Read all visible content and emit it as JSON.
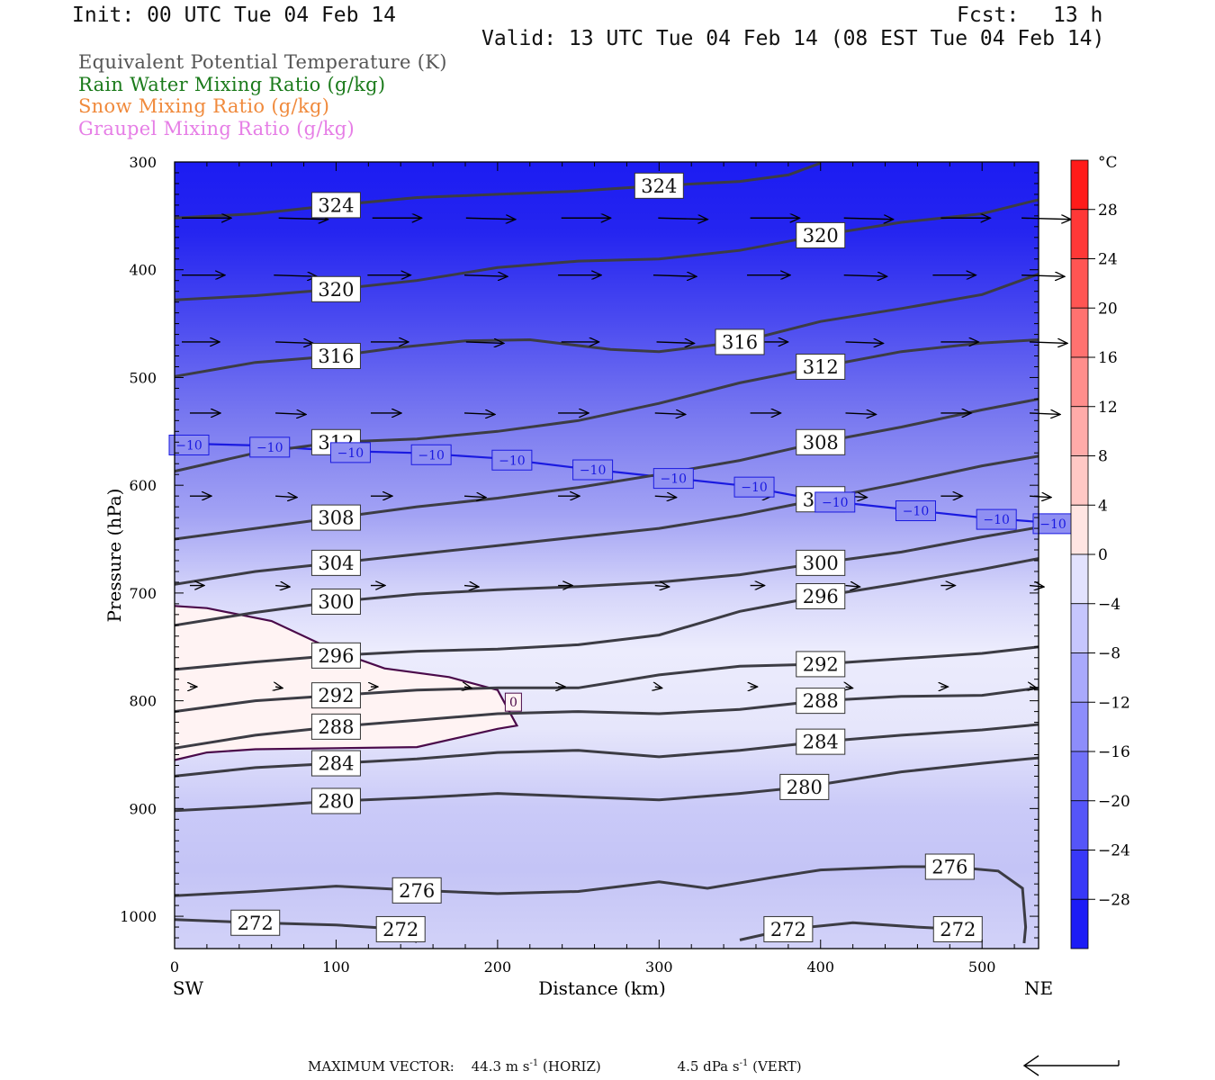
{
  "header": {
    "init": "Init: 00 UTC Tue 04 Feb 14",
    "fcst_label": "Fcst:",
    "fcst_value": "13 h",
    "valid": "Valid: 13 UTC Tue 04 Feb 14 (08 EST Tue 04 Feb 14)"
  },
  "legend": [
    {
      "text": "Equivalent Potential Temperature (K)",
      "color": "#555555"
    },
    {
      "text": "Rain Water Mixing Ratio (g/kg)",
      "color": "#1a7a1a"
    },
    {
      "text": "Snow Mixing Ratio (g/kg)",
      "color": "#f08a3c"
    },
    {
      "text": "Graupel Mixing Ratio (g/kg)",
      "color": "#e67ee6"
    }
  ],
  "chart_data": {
    "type": "cross-section",
    "xlabel": "Distance (km)",
    "ylabel": "Pressure (hPa)",
    "xlim": [
      0,
      535
    ],
    "ylim": [
      1030,
      300
    ],
    "x_ticks": [
      0,
      100,
      200,
      300,
      400,
      500
    ],
    "y_ticks": [
      300,
      400,
      500,
      600,
      700,
      800,
      900,
      1000
    ],
    "x_end_labels": {
      "left": "SW",
      "right": "NE"
    },
    "colorbar": {
      "unit": "°C",
      "ticks": [
        28,
        24,
        20,
        16,
        12,
        8,
        4,
        0,
        -4,
        -8,
        -12,
        -16,
        -20,
        -24,
        -28
      ],
      "tick_labels": [
        "28",
        "24",
        "20",
        "16",
        "12",
        "8",
        "4",
        "0",
        "−4",
        "−8",
        "−12",
        "−16",
        "−20",
        "−24",
        "−28"
      ],
      "range": [
        -32,
        32
      ]
    },
    "theta_e_contours": [
      {
        "value": 324,
        "points": [
          [
            0,
            352
          ],
          [
            50,
            348
          ],
          [
            100,
            340
          ],
          [
            150,
            333
          ],
          [
            200,
            330
          ],
          [
            250,
            327
          ],
          [
            300,
            322
          ],
          [
            350,
            318
          ],
          [
            380,
            312
          ],
          [
            400,
            301
          ]
        ]
      },
      {
        "value": 320,
        "points": [
          [
            0,
            428
          ],
          [
            50,
            424
          ],
          [
            100,
            418
          ],
          [
            150,
            410
          ],
          [
            200,
            398
          ],
          [
            250,
            392
          ],
          [
            300,
            390
          ],
          [
            350,
            382
          ],
          [
            400,
            368
          ],
          [
            450,
            356
          ],
          [
            500,
            348
          ],
          [
            535,
            335
          ]
        ]
      },
      {
        "value": 316,
        "points": [
          [
            0,
            499
          ],
          [
            50,
            486
          ],
          [
            100,
            480
          ],
          [
            140,
            472
          ],
          [
            180,
            466
          ],
          [
            220,
            465
          ],
          [
            270,
            474
          ],
          [
            300,
            476
          ],
          [
            350,
            467
          ],
          [
            400,
            448
          ],
          [
            450,
            436
          ],
          [
            500,
            423
          ],
          [
            535,
            404
          ]
        ]
      },
      {
        "value": 312,
        "points": [
          [
            0,
            587
          ],
          [
            50,
            570
          ],
          [
            100,
            560
          ],
          [
            150,
            557
          ],
          [
            200,
            550
          ],
          [
            250,
            540
          ],
          [
            300,
            524
          ],
          [
            350,
            505
          ],
          [
            400,
            490
          ],
          [
            450,
            476
          ],
          [
            500,
            468
          ],
          [
            535,
            465
          ]
        ]
      },
      {
        "value": 308,
        "points": [
          [
            0,
            650
          ],
          [
            50,
            640
          ],
          [
            100,
            630
          ],
          [
            150,
            620
          ],
          [
            200,
            612
          ],
          [
            250,
            602
          ],
          [
            300,
            590
          ],
          [
            350,
            577
          ],
          [
            400,
            560
          ],
          [
            450,
            546
          ],
          [
            500,
            530
          ],
          [
            535,
            520
          ]
        ]
      },
      {
        "value": 304,
        "points": [
          [
            0,
            692
          ],
          [
            50,
            680
          ],
          [
            100,
            672
          ],
          [
            150,
            664
          ],
          [
            200,
            656
          ],
          [
            250,
            648
          ],
          [
            300,
            640
          ],
          [
            350,
            628
          ],
          [
            400,
            613
          ],
          [
            450,
            598
          ],
          [
            500,
            582
          ],
          [
            535,
            573
          ]
        ]
      },
      {
        "value": 300,
        "points": [
          [
            0,
            730
          ],
          [
            50,
            718
          ],
          [
            100,
            708
          ],
          [
            150,
            701
          ],
          [
            200,
            697
          ],
          [
            250,
            694
          ],
          [
            300,
            690
          ],
          [
            350,
            683
          ],
          [
            400,
            672
          ],
          [
            450,
            662
          ],
          [
            500,
            648
          ],
          [
            535,
            639
          ]
        ]
      },
      {
        "value": 296,
        "points": [
          [
            0,
            771
          ],
          [
            50,
            764
          ],
          [
            100,
            758
          ],
          [
            150,
            754
          ],
          [
            200,
            752
          ],
          [
            250,
            748
          ],
          [
            300,
            739
          ],
          [
            350,
            717
          ],
          [
            400,
            703
          ],
          [
            450,
            691
          ],
          [
            500,
            678
          ],
          [
            535,
            668
          ]
        ]
      },
      {
        "value": 292,
        "points": [
          [
            0,
            810
          ],
          [
            50,
            800
          ],
          [
            100,
            795
          ],
          [
            150,
            790
          ],
          [
            200,
            788
          ],
          [
            250,
            788
          ],
          [
            300,
            776
          ],
          [
            350,
            768
          ],
          [
            400,
            766
          ],
          [
            450,
            761
          ],
          [
            500,
            756
          ],
          [
            535,
            750
          ]
        ]
      },
      {
        "value": 288,
        "points": [
          [
            0,
            844
          ],
          [
            50,
            832
          ],
          [
            100,
            824
          ],
          [
            150,
            818
          ],
          [
            200,
            812
          ],
          [
            250,
            810
          ],
          [
            300,
            812
          ],
          [
            350,
            808
          ],
          [
            400,
            800
          ],
          [
            450,
            796
          ],
          [
            500,
            795
          ],
          [
            535,
            788
          ]
        ]
      },
      {
        "value": 284,
        "points": [
          [
            0,
            870
          ],
          [
            50,
            862
          ],
          [
            100,
            858
          ],
          [
            150,
            854
          ],
          [
            200,
            848
          ],
          [
            250,
            846
          ],
          [
            300,
            852
          ],
          [
            350,
            846
          ],
          [
            400,
            838
          ],
          [
            450,
            832
          ],
          [
            500,
            827
          ],
          [
            535,
            822
          ]
        ]
      },
      {
        "value": 280,
        "points": [
          [
            0,
            902
          ],
          [
            50,
            898
          ],
          [
            100,
            893
          ],
          [
            150,
            890
          ],
          [
            200,
            886
          ],
          [
            250,
            889
          ],
          [
            300,
            892
          ],
          [
            350,
            886
          ],
          [
            390,
            880
          ],
          [
            450,
            866
          ],
          [
            500,
            858
          ],
          [
            535,
            853
          ]
        ]
      },
      {
        "value": 276,
        "points": [
          [
            0,
            981
          ],
          [
            50,
            977
          ],
          [
            100,
            972
          ],
          [
            150,
            976
          ],
          [
            200,
            979
          ],
          [
            250,
            977
          ],
          [
            300,
            968
          ],
          [
            330,
            974
          ],
          [
            370,
            964
          ],
          [
            400,
            957
          ],
          [
            450,
            954
          ],
          [
            480,
            954
          ],
          [
            510,
            958
          ],
          [
            525,
            974
          ],
          [
            527,
            1010
          ],
          [
            526,
            1025
          ]
        ]
      },
      {
        "value": 272,
        "points": [
          [
            0,
            1003
          ],
          [
            50,
            1006
          ],
          [
            100,
            1008
          ],
          [
            140,
            1012
          ],
          [
            150,
            1024
          ]
        ]
      },
      {
        "value": 272,
        "points": [
          [
            350,
            1022
          ],
          [
            380,
            1012
          ],
          [
            420,
            1006
          ],
          [
            460,
            1010
          ],
          [
            485,
            1012
          ],
          [
            488,
            1022
          ]
        ]
      }
    ],
    "temperature_contours": [
      {
        "value": -10,
        "points": [
          [
            0,
            561
          ],
          [
            50,
            563
          ],
          [
            100,
            568
          ],
          [
            150,
            570
          ],
          [
            200,
            575
          ],
          [
            250,
            584
          ],
          [
            300,
            592
          ],
          [
            350,
            600
          ],
          [
            400,
            614
          ],
          [
            450,
            622
          ],
          [
            500,
            630
          ],
          [
            535,
            634
          ]
        ]
      },
      {
        "value": 0,
        "points": [
          [
            0,
            712
          ],
          [
            20,
            714
          ],
          [
            60,
            726
          ],
          [
            100,
            754
          ],
          [
            130,
            770
          ],
          [
            170,
            778
          ],
          [
            200,
            790
          ],
          [
            212,
            823
          ],
          [
            200,
            826
          ],
          [
            150,
            843
          ],
          [
            100,
            844
          ],
          [
            50,
            845
          ],
          [
            20,
            848
          ],
          [
            0,
            855
          ]
        ]
      }
    ],
    "wind_vectors": [
      {
        "p": 352,
        "xs": [
          0,
          60,
          118,
          176,
          235,
          295,
          352,
          410,
          470,
          520
        ],
        "len": 55
      },
      {
        "p": 405,
        "xs": [
          0,
          57,
          115,
          175,
          233,
          292,
          350,
          410,
          465,
          520
        ],
        "len": 48
      },
      {
        "p": 467,
        "xs": [
          0,
          58,
          117,
          176,
          235,
          294,
          352,
          411,
          470,
          525
        ],
        "len": 42
      },
      {
        "p": 533,
        "xs": [
          5,
          58,
          117,
          175,
          233,
          293,
          352,
          411,
          470,
          525
        ],
        "len": 34
      },
      {
        "p": 610,
        "xs": [
          5,
          58,
          117,
          175,
          233,
          293,
          352,
          411,
          470,
          525
        ],
        "len": 24
      },
      {
        "p": 693,
        "xs": [
          5,
          58,
          117,
          175,
          233,
          293,
          352,
          411,
          470,
          525
        ],
        "len": 16
      },
      {
        "p": 787,
        "xs": [
          5,
          58,
          117,
          175,
          233,
          293,
          352,
          411,
          470,
          525
        ],
        "len": 8
      }
    ],
    "footer": {
      "max_vector_label": "MAXIMUM VECTOR:",
      "horiz": "44.3 m s",
      "horiz_exp": "-1",
      "horiz_tag": "(HORIZ)",
      "vert": "4.5 dPa s",
      "vert_exp": "-1",
      "vert_tag": "(VERT)"
    }
  }
}
